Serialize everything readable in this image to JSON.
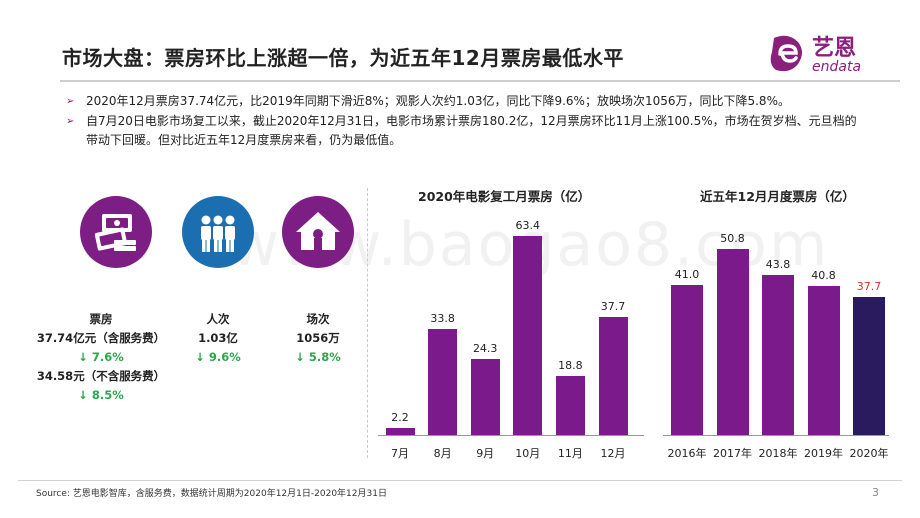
{
  "title": "市场大盘：票房环比上涨超一倍，为近五年12月票房最低水平",
  "logo": {
    "cn": "艺恩",
    "en": "endata"
  },
  "bullets": [
    "2020年12月票房37.74亿元，比2019年同期下滑近8%；观影人次约1.03亿，同比下降9.6%；放映场次1056万，同比下降5.8%。",
    "自7月20日电影市场复工以来，截止2020年12月31日，电影市场累计票房180.2亿，12月票房环比11月上涨100.5%，市场在贺岁档、元旦档的带动下回暖。但对比近五年12月度票房来看，仍为最低值。"
  ],
  "stats": {
    "box_office": {
      "label": "票房",
      "value1": "37.74亿元（含服务费）",
      "change1": "↓ 7.6%",
      "value2": "34.58元（不含服务费）",
      "change2": "↓ 8.5%"
    },
    "admissions": {
      "label": "人次",
      "value": "1.03亿",
      "change": "↓ 9.6%"
    },
    "screenings": {
      "label": "场次",
      "value": "1056万",
      "change": "↓ 5.8%"
    }
  },
  "colors": {
    "purple": "#7b1a8a",
    "dark_navy": "#2a1b5e",
    "icon_purple": "#7d1e84",
    "icon_blue": "#1b6fb0",
    "green": "#2aa84a",
    "highlight_red": "#d9302c"
  },
  "chart_data": [
    {
      "type": "bar",
      "title": "2020年电影复工月票房（亿）",
      "categories": [
        "7月",
        "8月",
        "9月",
        "10月",
        "11月",
        "12月"
      ],
      "values": [
        2.2,
        33.8,
        24.3,
        63.4,
        18.8,
        37.7
      ],
      "labels": [
        "2.2",
        "33.8",
        "24.3",
        "63.4",
        "18.8",
        "37.7"
      ],
      "ylim": [
        0,
        70
      ]
    },
    {
      "type": "bar",
      "title": "近五年12月月度票房（亿）",
      "categories": [
        "2016年",
        "2017年",
        "2018年",
        "2019年",
        "2020年"
      ],
      "values": [
        41.0,
        50.8,
        43.8,
        40.8,
        37.7
      ],
      "labels": [
        "41.0",
        "50.8",
        "43.8",
        "40.8",
        "37.7"
      ],
      "ylim": [
        0,
        56
      ]
    }
  ],
  "source": "Source:    艺恩电影智库，含服务费，数据统计周期为2020年12月1日-2020年12月31日",
  "page_number": "3",
  "watermark": "www.baogao8.com"
}
